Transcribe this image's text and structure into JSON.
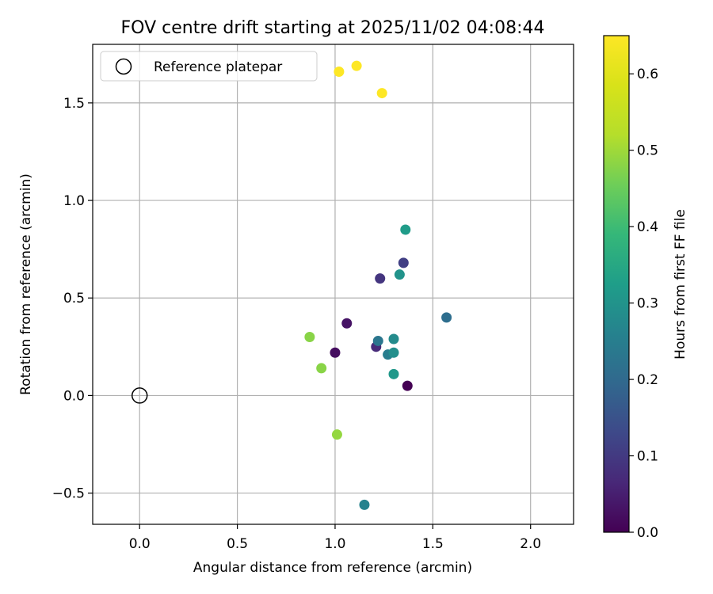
{
  "chart_data": {
    "type": "scatter",
    "title": "FOV centre drift starting at 2025/11/02 04:08:44",
    "xlabel": "Angular distance from reference (arcmin)",
    "ylabel": "Rotation from reference (arcmin)",
    "xlim": [
      -0.24,
      2.22
    ],
    "ylim": [
      -0.66,
      1.8
    ],
    "xticks": [
      0.0,
      0.5,
      1.0,
      1.5,
      2.0
    ],
    "xtick_labels": [
      "0.0",
      "0.5",
      "1.0",
      "1.5",
      "2.0"
    ],
    "yticks": [
      -0.5,
      0.0,
      0.5,
      1.0,
      1.5
    ],
    "ytick_labels": [
      "−0.5",
      "0.0",
      "0.5",
      "1.0",
      "1.5"
    ],
    "grid": true,
    "legend": {
      "position": "top-left",
      "entries": [
        {
          "label": "Reference platepar",
          "marker": "open-circle"
        }
      ]
    },
    "reference_point": {
      "x": 0.0,
      "y": 0.0
    },
    "colorbar": {
      "label": "Hours from first FF file",
      "colormap": "viridis",
      "range": [
        0.0,
        0.65
      ],
      "ticks": [
        0.0,
        0.1,
        0.2,
        0.3,
        0.4,
        0.5,
        0.6
      ],
      "tick_labels": [
        "0.0",
        "0.1",
        "0.2",
        "0.3",
        "0.4",
        "0.5",
        "0.6"
      ]
    },
    "points": [
      {
        "x": 1.37,
        "y": 0.05,
        "hours": 0.0
      },
      {
        "x": 1.0,
        "y": 0.22,
        "hours": 0.02
      },
      {
        "x": 1.06,
        "y": 0.37,
        "hours": 0.03
      },
      {
        "x": 1.21,
        "y": 0.25,
        "hours": 0.07
      },
      {
        "x": 1.23,
        "y": 0.6,
        "hours": 0.09
      },
      {
        "x": 1.35,
        "y": 0.68,
        "hours": 0.11
      },
      {
        "x": 1.57,
        "y": 0.4,
        "hours": 0.21
      },
      {
        "x": 1.22,
        "y": 0.28,
        "hours": 0.23
      },
      {
        "x": 1.27,
        "y": 0.21,
        "hours": 0.25
      },
      {
        "x": 1.15,
        "y": -0.56,
        "hours": 0.26
      },
      {
        "x": 1.3,
        "y": 0.29,
        "hours": 0.28
      },
      {
        "x": 1.3,
        "y": 0.22,
        "hours": 0.29
      },
      {
        "x": 1.33,
        "y": 0.62,
        "hours": 0.3
      },
      {
        "x": 1.3,
        "y": 0.11,
        "hours": 0.31
      },
      {
        "x": 1.36,
        "y": 0.85,
        "hours": 0.32
      },
      {
        "x": 0.87,
        "y": 0.3,
        "hours": 0.48
      },
      {
        "x": 0.93,
        "y": 0.14,
        "hours": 0.48
      },
      {
        "x": 1.01,
        "y": -0.2,
        "hours": 0.49
      },
      {
        "x": 1.02,
        "y": 1.66,
        "hours": 0.65
      },
      {
        "x": 1.11,
        "y": 1.69,
        "hours": 0.65
      },
      {
        "x": 1.24,
        "y": 1.55,
        "hours": 0.65
      }
    ]
  }
}
